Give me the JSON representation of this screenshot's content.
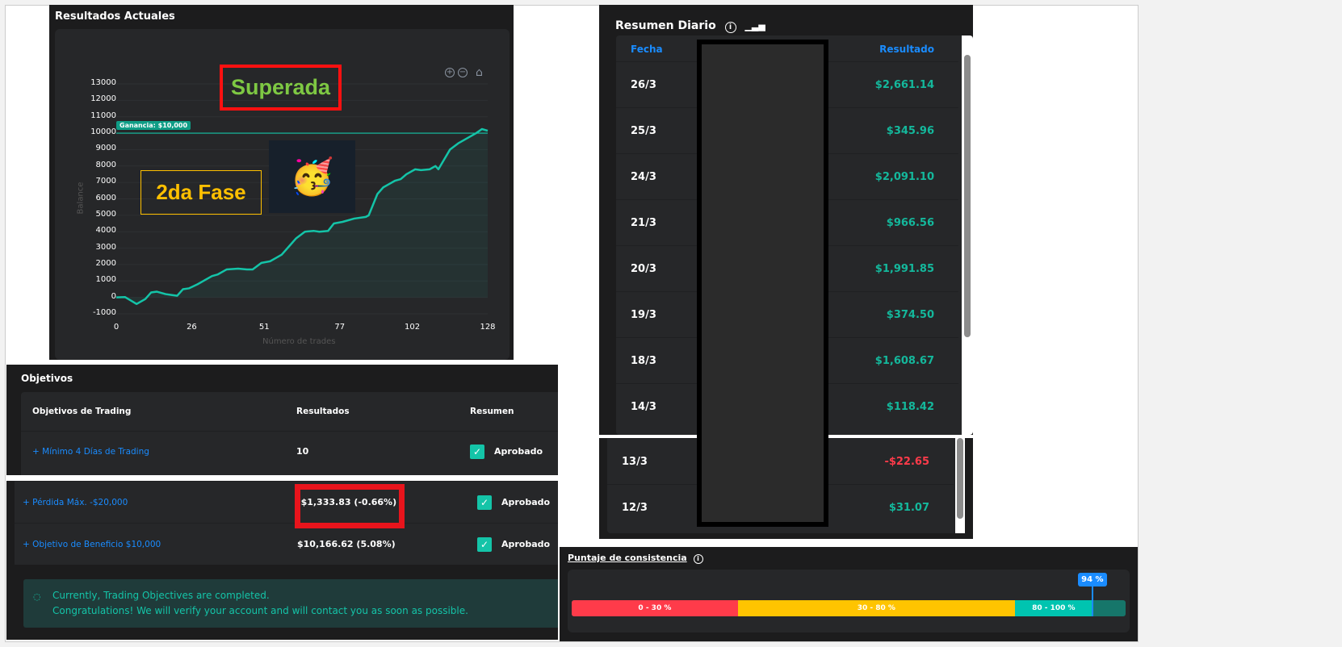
{
  "chart_panel": {
    "title": "Resultados Actuales",
    "overlay_superada": "Superada",
    "overlay_fase": "2da Fase",
    "emoji": "🥳",
    "target_label": "Ganancia: $10,000",
    "ylabel": "Balance",
    "xlabel": "Número de trades",
    "yticks": [
      "13000",
      "12000",
      "11000",
      "10000",
      "9000",
      "8000",
      "7000",
      "6000",
      "5000",
      "4000",
      "3000",
      "2000",
      "1000",
      "0",
      "-1000"
    ],
    "xticks": [
      "0",
      "26",
      "51",
      "77",
      "102",
      "128"
    ]
  },
  "chart_data": {
    "type": "area",
    "xlabel": "Número de trades",
    "ylabel": "Balance",
    "xlim": [
      0,
      128
    ],
    "ylim": [
      -1000,
      13000
    ],
    "target_line": 10000,
    "line_color": "#14c4a8",
    "x": [
      0,
      3,
      7,
      10,
      12,
      14,
      17,
      19,
      21,
      23,
      25,
      28,
      30,
      33,
      35,
      38,
      42,
      45,
      47,
      50,
      53,
      55,
      57,
      60,
      62,
      65,
      68,
      70,
      73,
      75,
      78,
      82,
      86,
      87,
      90,
      92,
      94,
      96,
      98,
      100,
      103,
      105,
      108,
      110,
      111,
      113,
      115,
      118,
      121,
      124,
      126,
      128
    ],
    "y": [
      0,
      20,
      -400,
      -100,
      300,
      350,
      200,
      150,
      100,
      500,
      550,
      800,
      1000,
      1300,
      1400,
      1700,
      1750,
      1700,
      1700,
      2100,
      2200,
      2400,
      2600,
      3200,
      3600,
      4000,
      4050,
      4000,
      4050,
      4500,
      4600,
      4800,
      4900,
      5000,
      6300,
      6700,
      6900,
      7100,
      7200,
      7500,
      7800,
      7750,
      7800,
      8000,
      7800,
      8400,
      9000,
      9400,
      9700,
      10000,
      10250,
      10150
    ]
  },
  "objectives": {
    "title": "Objetivos",
    "headers": [
      "Objetivos de Trading",
      "Resultados",
      "Resumen"
    ],
    "rows": [
      {
        "name": "+ Mínimo 4 Días de Trading",
        "result": "10",
        "status": "Aprobado"
      },
      {
        "name": "+ Pérdida Máx. -$20,000",
        "result": "-$1,333.83 (-0.66%)",
        "status": "Aprobado"
      },
      {
        "name": "+ Objetivo de Beneficio $10,000",
        "result": "$10,166.62 (5.08%)",
        "status": "Aprobado"
      }
    ],
    "notice_line1": "Currently, Trading Objectives are completed.",
    "notice_line2": "Congratulations! We will verify your account and will contact you as soon as possible."
  },
  "daily": {
    "title": "Resumen Diario",
    "col_date": "Fecha",
    "col_result": "Resultado",
    "rows": [
      {
        "date": "26/3",
        "result": "$2,661.14",
        "positive": true
      },
      {
        "date": "25/3",
        "result": "$345.96",
        "positive": true
      },
      {
        "date": "24/3",
        "result": "$2,091.10",
        "positive": true
      },
      {
        "date": "21/3",
        "result": "$966.56",
        "positive": true
      },
      {
        "date": "20/3",
        "result": "$1,991.85",
        "positive": true
      },
      {
        "date": "19/3",
        "result": "$374.50",
        "positive": true
      },
      {
        "date": "18/3",
        "result": "$1,608.67",
        "positive": true
      },
      {
        "date": "14/3",
        "result": "$118.42",
        "positive": true
      }
    ],
    "rows2": [
      {
        "date": "13/3",
        "result": "-$22.65",
        "positive": false
      },
      {
        "date": "12/3",
        "result": "$31.07",
        "positive": true
      }
    ]
  },
  "consistency": {
    "title": "Puntaje de consistencia",
    "score_label": "94 %",
    "score": 94,
    "segments": [
      {
        "label": "0 - 30 %",
        "from": 0,
        "to": 30,
        "color": "#ff3b4a"
      },
      {
        "label": "30 - 80 %",
        "from": 30,
        "to": 80,
        "color": "#ffc400"
      },
      {
        "label": "80 - 100 %",
        "from": 80,
        "to": 100,
        "color": "#00c4b0"
      }
    ]
  },
  "colors": {
    "accent": "#14c4a8",
    "link": "#1a8cff",
    "negative": "#ff3b4a",
    "highlight_box": "#e8141c",
    "fase": "#ffc000",
    "superada": "#7ec843"
  }
}
